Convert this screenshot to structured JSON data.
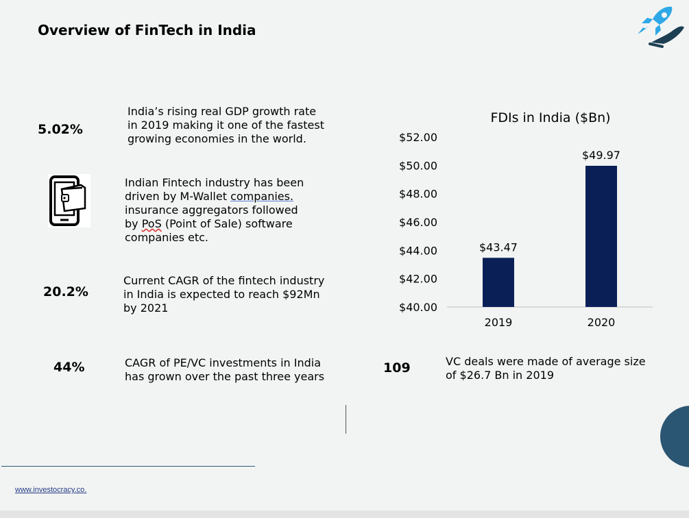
{
  "title": "Overview of FinTech in India",
  "stats": [
    {
      "value": "5.02%",
      "lines": [
        "India’s rising real GDP growth rate",
        "in 2019 making it one of the fastest",
        "growing economies in the world."
      ]
    },
    {
      "icon": "mobile-wallet-icon",
      "lines": [
        "Indian Fintech industry has been",
        "driven by M-Wallet ",
        "companies.",
        "insurance aggregators followed",
        "by ",
        "PoS",
        " (Point of Sale) software",
        "companies etc."
      ]
    },
    {
      "value": "20.2%",
      "lines": [
        "Current CAGR of the fintech industry",
        "in India is expected to reach $92Mn",
        "by 2021"
      ]
    },
    {
      "value": "44%",
      "lines": [
        "CAGR of PE/VC investments in India",
        "has grown over the past three years"
      ]
    },
    {
      "value": "109",
      "lines": [
        "VC deals were made of average size",
        "of $26.7 Bn in 2019"
      ]
    }
  ],
  "chart_data": {
    "type": "bar",
    "title": "FDIs in India ($Bn)",
    "categories": [
      "2019",
      "2020"
    ],
    "values": [
      43.47,
      49.97
    ],
    "data_labels": [
      "$43.47",
      "$49.97"
    ],
    "ylim": [
      40,
      52
    ],
    "yticks": [
      "$40.00",
      "$42.00",
      "$44.00",
      "$46.00",
      "$48.00",
      "$50.00",
      "$52.00"
    ],
    "grid": false,
    "bar_color": "#0b1f57"
  },
  "footer": {
    "link": "www.investocracy.co."
  },
  "logo": "rocket-hand-icon",
  "colors": {
    "accent": "#2b5673",
    "rocket": "#2ea8e6"
  }
}
